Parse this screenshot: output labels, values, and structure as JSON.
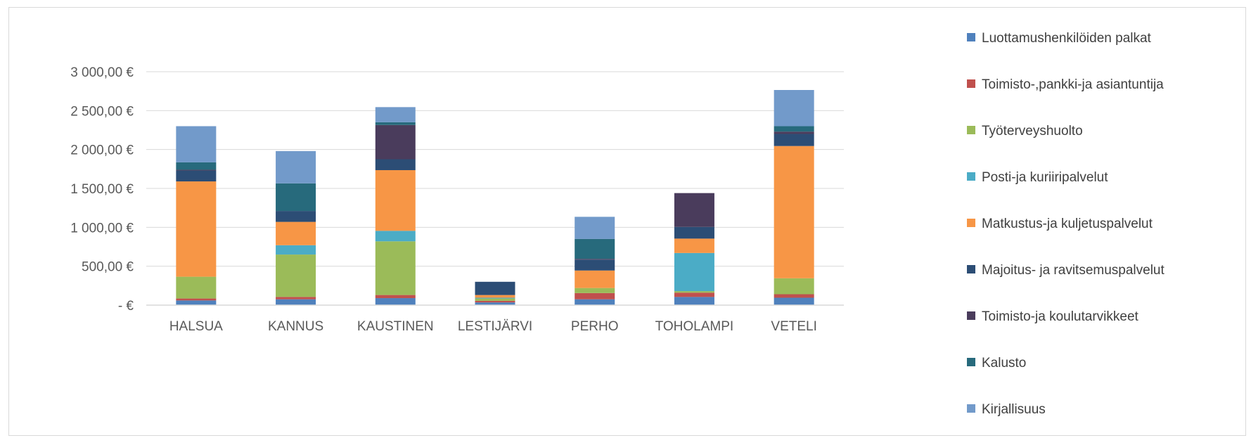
{
  "chart_data": {
    "type": "bar",
    "stacked": true,
    "title": "",
    "xlabel": "",
    "ylabel": "",
    "ylim": [
      0,
      3000
    ],
    "yticks": [
      0,
      500,
      1000,
      1500,
      2000,
      2500,
      3000
    ],
    "ytick_labels": [
      "-  €",
      "500,00 €",
      "1 000,00 €",
      "1 500,00 €",
      "2 000,00 €",
      "2 500,00 €",
      "3 000,00 €"
    ],
    "grid": true,
    "legend_position": "right",
    "categories": [
      "HALSUA",
      "KANNUS",
      "KAUSTINEN",
      "LESTIJÄRVI",
      "PERHO",
      "TOHOLAMPI",
      "VETELI"
    ],
    "series": [
      {
        "name": "Luottamushenkilöiden palkat",
        "color": "#4f81bd",
        "values": [
          60,
          75,
          90,
          35,
          75,
          105,
          95
        ]
      },
      {
        "name": "Toimisto-,pankki-ja asiantuntija",
        "color": "#c0504d",
        "values": [
          25,
          30,
          40,
          20,
          80,
          55,
          45
        ]
      },
      {
        "name": "Työterveyshuolto",
        "color": "#9bbb59",
        "values": [
          280,
          545,
          690,
          30,
          65,
          20,
          205
        ]
      },
      {
        "name": "Posti-ja kuriiripalvelut",
        "color": "#4bacc6",
        "values": [
          0,
          120,
          135,
          10,
          0,
          490,
          0
        ]
      },
      {
        "name": "Matkustus-ja kuljetuspalvelut",
        "color": "#f79646",
        "values": [
          1225,
          300,
          780,
          35,
          225,
          185,
          1700
        ]
      },
      {
        "name": "Majoitus- ja ravitsemuspalvelut",
        "color": "#2c4d75",
        "values": [
          140,
          140,
          140,
          170,
          140,
          150,
          155
        ]
      },
      {
        "name": "Toimisto-ja koulutarvikkeet",
        "color": "#4a3c5c",
        "values": [
          10,
          0,
          440,
          0,
          10,
          435,
          30
        ]
      },
      {
        "name": "Kalusto",
        "color": "#276a7c",
        "values": [
          95,
          355,
          35,
          0,
          255,
          0,
          70
        ]
      },
      {
        "name": "Kirjallisuus",
        "color": "#729aca",
        "values": [
          465,
          415,
          195,
          0,
          285,
          0,
          465
        ]
      }
    ]
  }
}
